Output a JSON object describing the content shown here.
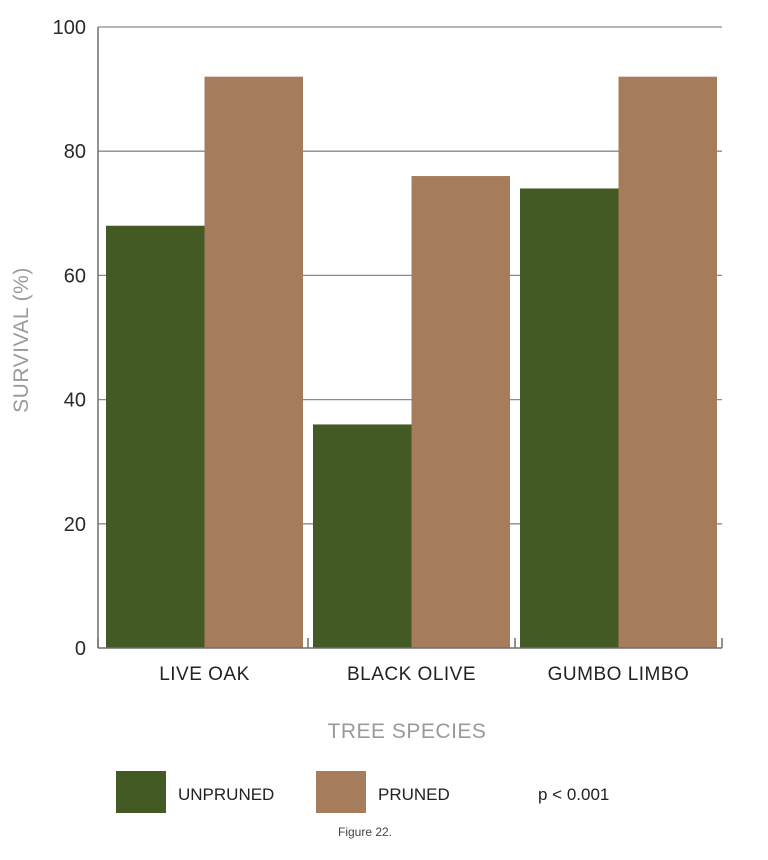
{
  "chart_data": {
    "type": "bar",
    "categories": [
      "LIVE OAK",
      "BLACK OLIVE",
      "GUMBO LIMBO"
    ],
    "series": [
      {
        "name": "UNPRUNED",
        "values": [
          68,
          36,
          74
        ],
        "color": "#435a24"
      },
      {
        "name": "PRUNED",
        "values": [
          92,
          76,
          92
        ],
        "color": "#a77c5d"
      }
    ],
    "xlabel": "TREE SPECIES",
    "ylabel": "SURVIVAL (%)",
    "ylim": [
      0,
      100
    ],
    "yticks": [
      0,
      20,
      40,
      60,
      80,
      100
    ],
    "grid": true,
    "legend_position": "bottom"
  },
  "annotation": "p < 0.001",
  "caption": "Figure 22.",
  "colors": {
    "grid": "#8a8a8a",
    "axis_title": "#9a9a9a"
  }
}
